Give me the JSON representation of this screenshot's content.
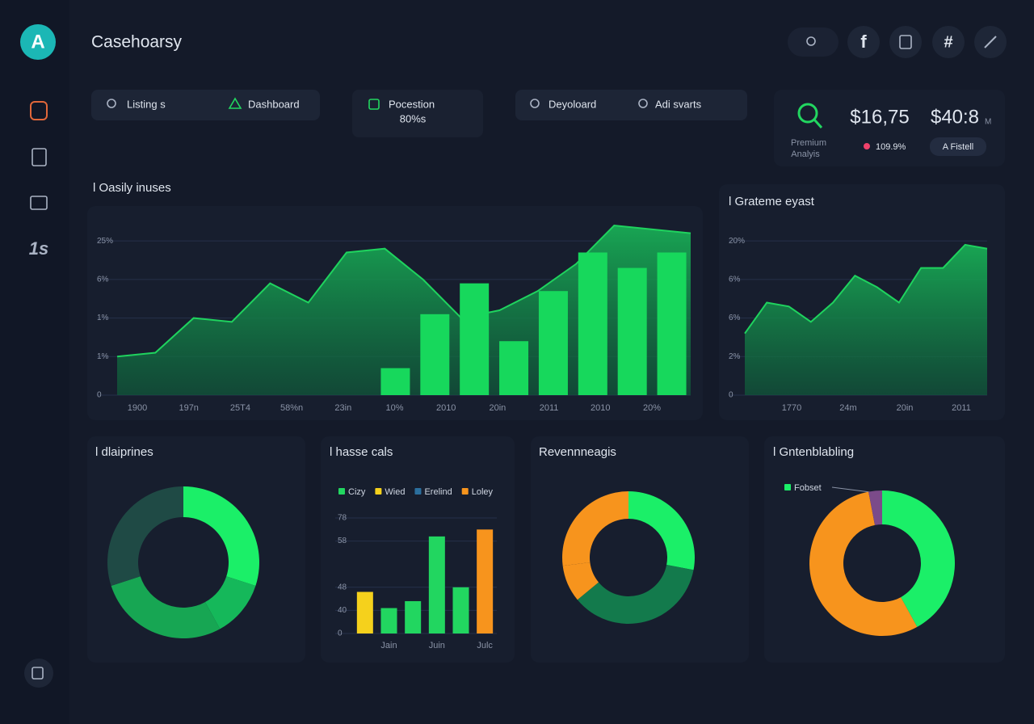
{
  "header": {
    "logo": "A",
    "title": "Casehoarsy",
    "icons": [
      "f",
      "#"
    ]
  },
  "sidebar": {
    "label": "1s"
  },
  "toolbar": {
    "pill1": [
      "Listing s",
      "Dashboard"
    ],
    "card2": {
      "label": "Pocestion",
      "value": "80%s"
    },
    "pill3": [
      "Deyoloard",
      "Adi svarts"
    ],
    "premium": {
      "label": [
        "Premium",
        "Analyis"
      ],
      "amount1": "$16,75",
      "amount2": "$40:8",
      "unit": "M",
      "change": "109.9%",
      "button": "A Fistell"
    }
  },
  "charts": [
    {
      "type": "area-bar",
      "title": "l Oasily inuses",
      "ylim": [
        0,
        48
      ],
      "yticks": [
        0,
        {
          "value": 10,
          "label": "1%"
        },
        {
          "value": 20,
          "label": "1%"
        },
        {
          "value": 30,
          "label": "6%"
        },
        {
          "value": 40,
          "label": "25%"
        }
      ],
      "x_labels": [
        "1900",
        "197n",
        "25T4",
        "58%n",
        "23in",
        "10%",
        "2010",
        "20in",
        "2011",
        "2010",
        "20%"
      ],
      "area": {
        "color": "#1fd35e",
        "values": [
          10,
          11,
          20,
          19,
          29,
          24,
          37,
          38,
          30,
          20,
          22,
          27,
          34,
          44,
          43,
          42
        ]
      },
      "bars": {
        "color": "#17d85c",
        "values": [
          7,
          21,
          29,
          14,
          27,
          37,
          33,
          37
        ]
      }
    },
    {
      "type": "area",
      "title": "l Grateme eyast",
      "ylim": [
        0,
        48
      ],
      "yticks": [
        0,
        {
          "value": 10,
          "label": "2%"
        },
        {
          "value": 20,
          "label": "6%"
        },
        {
          "value": 30,
          "label": "6%"
        },
        {
          "value": 40,
          "label": "20%"
        }
      ],
      "categories": [
        "1770",
        "24m",
        "20in",
        "2011"
      ],
      "color": "#1fd35e",
      "values": [
        16,
        24,
        23,
        19,
        24,
        31,
        28,
        24,
        33,
        33,
        39,
        38
      ]
    },
    {
      "type": "donut",
      "title": "l dlaiprines",
      "values": [
        30,
        12,
        28,
        30
      ],
      "colors": [
        "#1bef68",
        "#15b85a",
        "#17a653",
        "#1f4a45"
      ]
    },
    {
      "type": "bar",
      "title": "l hasse cals",
      "legend": [
        {
          "name": "Cizy",
          "color": "#22d660"
        },
        {
          "name": "Wied",
          "color": "#f5d11c"
        },
        {
          "name": "Erelind",
          "color": "#2b6f9e"
        },
        {
          "name": "Loley",
          "color": "#f7941d"
        }
      ],
      "categories": [
        null,
        "Jain",
        null,
        "Juin",
        null,
        "Julc"
      ],
      "values": [
        18,
        11,
        14,
        42,
        20,
        45
      ],
      "colors": [
        "#f5d11c",
        "#22d660",
        "#22d660",
        "#22d660",
        "#22d660",
        "#f7941d"
      ],
      "ylim": [
        0,
        50
      ],
      "yticks": [
        0,
        {
          "value": 10,
          "label": "40"
        },
        {
          "value": 20,
          "label": "48"
        },
        {
          "value": 40,
          "label": "58"
        },
        {
          "value": 50,
          "label": "78"
        }
      ]
    },
    {
      "type": "pie",
      "title": "Revennneagis",
      "values": [
        28,
        36,
        9,
        27
      ],
      "colors": [
        "#1bef68",
        "#137a4c",
        "#f7941d",
        "#f7941d"
      ]
    },
    {
      "type": "donut",
      "title": "l Gntenblabling",
      "legend": [
        {
          "name": "Fobset",
          "color": "#1bef68"
        }
      ],
      "values": [
        42,
        55,
        3
      ],
      "colors": [
        "#1bef68",
        "#f7941d",
        "#7b4b8a"
      ]
    }
  ]
}
